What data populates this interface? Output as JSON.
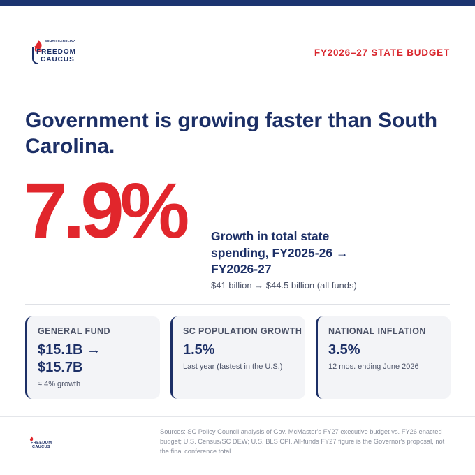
{
  "brand": {
    "logo_line1": "SOUTH CAROLINA",
    "logo_line2": "FREEDOM",
    "logo_line3": "CAUCUS"
  },
  "header": {
    "label": "FY2026–27 STATE BUDGET"
  },
  "headline": "Government is growing faster than South Carolina.",
  "hero": {
    "percent": "7.9%",
    "description": "Growth in total state spending, FY2025-26 → FY2026-27",
    "detail": "$41 billion → $44.5 billion (all funds)"
  },
  "cards": [
    {
      "title": "GENERAL FUND",
      "value": "$15.1B → $15.7B",
      "note": "≈ 4% growth"
    },
    {
      "title": "SC POPULATION GROWTH",
      "value": "1.5%",
      "note": "Last year (fastest in the U.S.)"
    },
    {
      "title": "NATIONAL INFLATION",
      "value": "3.5%",
      "note": "12 mos. ending June 2026"
    }
  ],
  "footer": {
    "sources": "Sources: SC Policy Council analysis of Gov. McMaster's FY27 executive budget vs. FY26 enacted budget; U.S. Census/SC DEW; U.S. BLS CPI. All-funds FY27 figure is the Governor's proposal, not the final conference total."
  },
  "colors": {
    "navy": "#1c2f66",
    "red": "#e1262c",
    "card_bg": "#f3f4f7"
  }
}
